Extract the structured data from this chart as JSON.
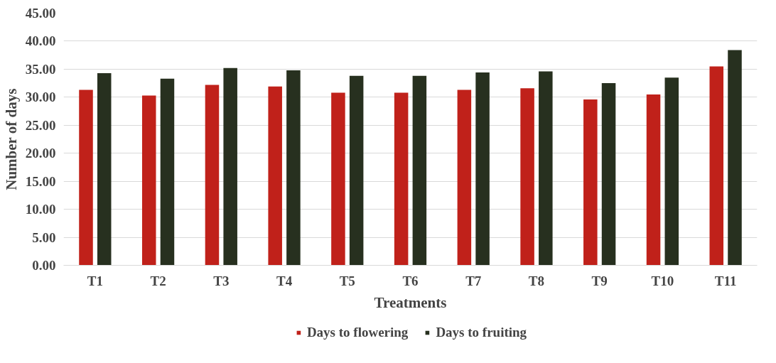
{
  "chart_data": {
    "type": "bar",
    "xlabel": "Treatments",
    "ylabel": "Number of days",
    "categories": [
      "T1",
      "T2",
      "T3",
      "T4",
      "T5",
      "T6",
      "T7",
      "T8",
      "T9",
      "T10",
      "T11"
    ],
    "series": [
      {
        "name": "Days to flowering",
        "color": "#c0211a",
        "values": [
          31.3,
          30.3,
          32.2,
          31.9,
          30.8,
          30.8,
          31.3,
          31.6,
          29.6,
          30.5,
          35.5
        ]
      },
      {
        "name": "Days to fruiting",
        "color": "#27301f",
        "values": [
          34.3,
          33.3,
          35.2,
          34.8,
          33.8,
          33.8,
          34.4,
          34.6,
          32.5,
          33.5,
          38.4
        ]
      }
    ],
    "ylim": [
      0,
      45
    ],
    "yticks": [
      {
        "value": 0,
        "label": "0.00"
      },
      {
        "value": 5,
        "label": "5.00"
      },
      {
        "value": 10,
        "label": "10.00"
      },
      {
        "value": 15,
        "label": "15.00"
      },
      {
        "value": 20,
        "label": "20.00"
      },
      {
        "value": 25,
        "label": "25.00"
      },
      {
        "value": 30,
        "label": "30.00"
      },
      {
        "value": 35,
        "label": "35.00"
      },
      {
        "value": 40,
        "label": "40.00"
      },
      {
        "value": 45,
        "label": "45.00"
      }
    ],
    "grid": "y",
    "legend": "bottom"
  }
}
